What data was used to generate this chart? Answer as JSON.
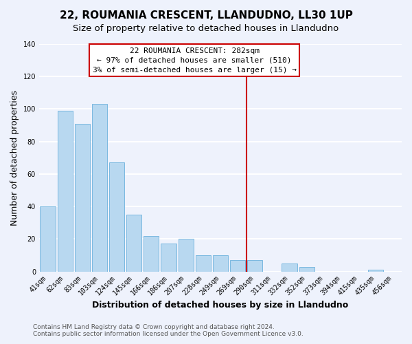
{
  "title": "22, ROUMANIA CRESCENT, LLANDUDNO, LL30 1UP",
  "subtitle": "Size of property relative to detached houses in Llandudno",
  "xlabel": "Distribution of detached houses by size in Llandudno",
  "ylabel": "Number of detached properties",
  "categories": [
    "41sqm",
    "62sqm",
    "83sqm",
    "103sqm",
    "124sqm",
    "145sqm",
    "166sqm",
    "186sqm",
    "207sqm",
    "228sqm",
    "249sqm",
    "269sqm",
    "290sqm",
    "311sqm",
    "332sqm",
    "352sqm",
    "373sqm",
    "394sqm",
    "415sqm",
    "435sqm",
    "456sqm"
  ],
  "values": [
    40,
    99,
    91,
    103,
    67,
    35,
    22,
    17,
    20,
    10,
    10,
    7,
    7,
    0,
    5,
    3,
    0,
    0,
    0,
    1,
    0
  ],
  "bar_color": "#b8d8f0",
  "bar_edge_color": "#7ab8e0",
  "marker_line_color": "#cc0000",
  "annotation_box_color": "#ffffff",
  "annotation_box_edge": "#cc0000",
  "marker_label": "22 ROUMANIA CRESCENT: 282sqm",
  "marker_sub1": "← 97% of detached houses are smaller (510)",
  "marker_sub2": "3% of semi-detached houses are larger (15) →",
  "ylim": [
    0,
    140
  ],
  "yticks": [
    0,
    20,
    40,
    60,
    80,
    100,
    120,
    140
  ],
  "footer1": "Contains HM Land Registry data © Crown copyright and database right 2024.",
  "footer2": "Contains public sector information licensed under the Open Government Licence v3.0.",
  "background_color": "#eef2fc",
  "grid_color": "#ffffff",
  "title_fontsize": 11,
  "subtitle_fontsize": 9.5,
  "axis_label_fontsize": 9,
  "tick_fontsize": 7,
  "footer_fontsize": 6.5,
  "annotation_fontsize": 8
}
